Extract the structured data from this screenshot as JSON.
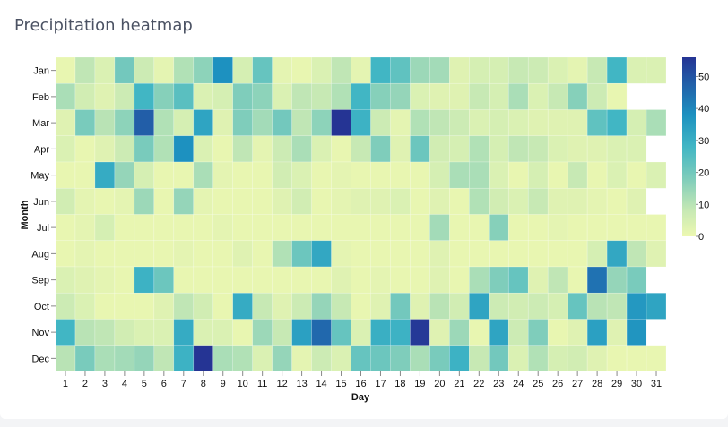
{
  "card": {
    "title": "Precipitation heatmap"
  },
  "colors": {
    "stops": [
      "#edf8b1",
      "#c7e9b4",
      "#7fcdbb",
      "#41b6c4",
      "#1d91c0",
      "#225ea8",
      "#253494"
    ],
    "stop_values": [
      0,
      8,
      18,
      28,
      38,
      48,
      56
    ],
    "background": "#ffffff",
    "page_background": "#f3f4f6",
    "title_color": "#4b5263"
  },
  "chart_data": {
    "type": "heatmap",
    "title": "Precipitation heatmap",
    "xlabel": "Day",
    "ylabel": "Month",
    "x": [
      1,
      2,
      3,
      4,
      5,
      6,
      7,
      8,
      9,
      10,
      11,
      12,
      13,
      14,
      15,
      16,
      17,
      18,
      19,
      20,
      21,
      22,
      23,
      24,
      25,
      26,
      27,
      28,
      29,
      30,
      31
    ],
    "y": [
      "Jan",
      "Feb",
      "Mar",
      "Apr",
      "May",
      "Jun",
      "Jul",
      "Aug",
      "Sep",
      "Oct",
      "Nov",
      "Dec"
    ],
    "legend": {
      "type": "colorbar",
      "position": "right",
      "ticks": [
        0,
        10,
        20,
        30,
        40,
        50
      ],
      "range": [
        0,
        56
      ]
    },
    "grid": false,
    "values": [
      [
        1,
        9,
        4,
        20,
        7,
        2,
        11,
        16,
        38,
        5,
        22,
        2,
        1,
        4,
        9,
        2,
        28,
        23,
        14,
        13,
        3,
        5,
        5,
        8,
        7,
        4,
        2,
        8,
        28,
        4,
        4
      ],
      [
        12,
        6,
        3,
        7,
        28,
        17,
        24,
        4,
        5,
        18,
        16,
        4,
        9,
        8,
        11,
        28,
        17,
        15,
        4,
        3,
        3,
        8,
        5,
        12,
        4,
        8,
        17,
        7,
        1,
        null,
        null
      ],
      [
        3,
        19,
        10,
        16,
        48,
        11,
        5,
        33,
        3,
        18,
        13,
        20,
        9,
        16,
        56,
        29,
        7,
        2,
        11,
        9,
        7,
        4,
        5,
        4,
        3,
        3,
        3,
        23,
        28,
        5,
        12
      ],
      [
        4,
        1,
        3,
        7,
        19,
        11,
        38,
        4,
        1,
        9,
        2,
        7,
        12,
        4,
        1,
        8,
        18,
        3,
        21,
        6,
        5,
        11,
        5,
        9,
        8,
        4,
        3,
        3,
        4,
        4,
        null
      ],
      [
        1,
        1,
        31,
        15,
        5,
        1,
        1,
        12,
        2,
        1,
        1,
        6,
        4,
        1,
        2,
        1,
        1,
        1,
        1,
        5,
        12,
        12,
        4,
        1,
        5,
        1,
        8,
        1,
        4,
        1,
        4
      ],
      [
        6,
        2,
        1,
        2,
        14,
        1,
        15,
        2,
        1,
        1,
        1,
        3,
        6,
        1,
        2,
        3,
        3,
        4,
        1,
        3,
        1,
        11,
        6,
        4,
        8,
        3,
        3,
        2,
        1,
        3,
        null
      ],
      [
        1,
        2,
        5,
        1,
        1,
        1,
        1,
        1,
        2,
        1,
        1,
        1,
        1,
        1,
        1,
        1,
        1,
        1,
        1,
        13,
        1,
        1,
        17,
        1,
        1,
        2,
        1,
        1,
        1,
        1,
        1
      ],
      [
        1,
        2,
        1,
        1,
        1,
        1,
        2,
        1,
        1,
        3,
        1,
        11,
        21,
        32,
        2,
        1,
        1,
        1,
        1,
        3,
        1,
        1,
        1,
        1,
        1,
        1,
        1,
        5,
        32,
        9,
        3
      ],
      [
        4,
        3,
        2,
        1,
        29,
        21,
        1,
        1,
        1,
        1,
        1,
        1,
        1,
        1,
        3,
        1,
        2,
        1,
        1,
        3,
        1,
        12,
        18,
        22,
        3,
        9,
        1,
        44,
        15,
        19,
        null
      ],
      [
        7,
        4,
        1,
        1,
        1,
        3,
        9,
        6,
        1,
        31,
        8,
        3,
        7,
        15,
        8,
        1,
        3,
        20,
        3,
        10,
        6,
        33,
        7,
        6,
        7,
        5,
        22,
        10,
        9,
        36,
        33
      ],
      [
        28,
        10,
        9,
        6,
        4,
        4,
        31,
        4,
        4,
        1,
        14,
        8,
        34,
        46,
        22,
        4,
        30,
        29,
        55,
        3,
        14,
        1,
        33,
        7,
        18,
        1,
        3,
        34,
        3,
        37,
        null
      ],
      [
        10,
        19,
        12,
        13,
        15,
        9,
        29,
        56,
        12,
        11,
        4,
        15,
        2,
        7,
        4,
        22,
        21,
        18,
        12,
        19,
        29,
        8,
        20,
        4,
        11,
        5,
        6,
        3,
        1,
        1,
        1
      ]
    ]
  }
}
